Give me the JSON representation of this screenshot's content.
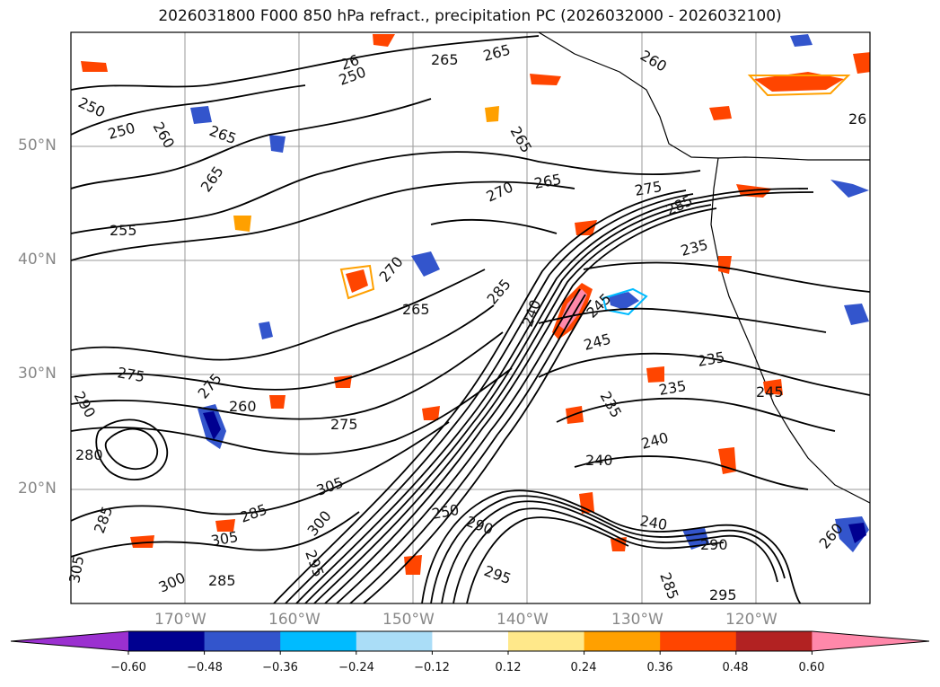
{
  "title": "2026031800 F000 850 hPa refract., precipitation PC (2026032000 - 2026032100)",
  "lat_labels": [
    "50°N",
    "40°N",
    "30°N",
    "20°N"
  ],
  "lon_labels": [
    "170°W",
    "160°W",
    "150°W",
    "140°W",
    "130°W",
    "120°W"
  ],
  "colorbar": {
    "ticks": [
      "−0.60",
      "−0.48",
      "−0.36",
      "−0.24",
      "−0.12",
      "0.12",
      "0.24",
      "0.36",
      "0.48",
      "0.60"
    ],
    "colors": [
      "#9b30d0",
      "#000090",
      "#3355cc",
      "#00bbff",
      "#aaddf7",
      "#ffffff",
      "#ffe88a",
      "#ffa000",
      "#ff4500",
      "#b22222",
      "#ff88aa"
    ]
  },
  "contour_labels": [
    "250",
    "250",
    "260",
    "265",
    "265",
    "255",
    "265",
    "265",
    "270",
    "265",
    "265",
    "275",
    "285",
    "235",
    "270",
    "265",
    "285",
    "240",
    "245",
    "245",
    "235",
    "235",
    "245",
    "235",
    "240",
    "240",
    "275",
    "290",
    "280",
    "275",
    "275",
    "285",
    "305",
    "260",
    "305",
    "285",
    "300",
    "250",
    "290",
    "295",
    "295",
    "300",
    "285",
    "240",
    "290",
    "285",
    "295",
    "260",
    "26",
    "305",
    "250",
    "26",
    "260"
  ]
}
